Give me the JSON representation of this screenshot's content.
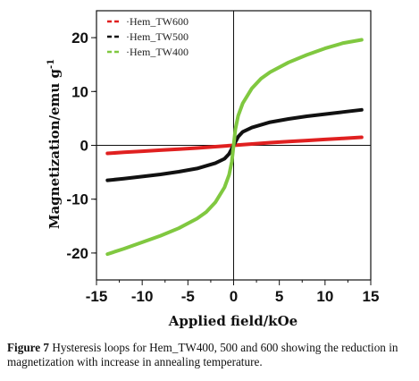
{
  "chart_data": {
    "type": "line",
    "title": "",
    "xlabel": "Applied field/kOe",
    "ylabel": "Magnetization/emu g",
    "ylabel_superscript": "-1",
    "xlim": [
      -15,
      15
    ],
    "ylim": [
      -25,
      25
    ],
    "xticks": [
      -15,
      -10,
      -5,
      0,
      5,
      10,
      15
    ],
    "yticks": [
      -20,
      -10,
      0,
      10,
      20
    ],
    "grid": false,
    "legend_position": "top-left",
    "series": [
      {
        "name": "Hem_TW600",
        "color": "#e02020",
        "x": [
          -13.8,
          -12,
          -10,
          -8,
          -6,
          -4,
          -2,
          -1,
          0,
          1,
          2,
          4,
          6,
          8,
          10,
          12,
          14
        ],
        "y": [
          -1.5,
          -1.3,
          -1.1,
          -0.9,
          -0.7,
          -0.5,
          -0.25,
          -0.12,
          0,
          0.12,
          0.25,
          0.5,
          0.7,
          0.9,
          1.1,
          1.3,
          1.5
        ]
      },
      {
        "name": "Hem_TW500",
        "color": "#111111",
        "x": [
          -13.8,
          -12,
          -10,
          -8,
          -6,
          -4,
          -2,
          -1,
          -0.5,
          0,
          0.5,
          1,
          2,
          4,
          6,
          8,
          10,
          12,
          14
        ],
        "y": [
          -6.5,
          -6.2,
          -5.8,
          -5.4,
          -4.9,
          -4.3,
          -3.3,
          -2.5,
          -1.6,
          0,
          1.6,
          2.5,
          3.3,
          4.3,
          4.9,
          5.4,
          5.8,
          6.2,
          6.6
        ]
      },
      {
        "name": "Hem_TW400",
        "color": "#80c840",
        "x": [
          -13.8,
          -12,
          -10,
          -8,
          -6,
          -4,
          -3,
          -2,
          -1,
          -0.5,
          -0.2,
          0,
          0.2,
          0.5,
          1,
          2,
          3,
          4,
          6,
          8,
          10,
          12,
          14
        ],
        "y": [
          -20.2,
          -19.2,
          -18.0,
          -16.8,
          -15.4,
          -13.6,
          -12.4,
          -10.6,
          -7.8,
          -5.5,
          -3.0,
          0,
          3.0,
          5.5,
          7.8,
          10.6,
          12.4,
          13.6,
          15.4,
          16.8,
          18.0,
          19.0,
          19.6
        ]
      }
    ]
  },
  "caption": {
    "label": "Figure 7",
    "text": "Hysteresis loops for Hem_TW400, 500 and 600 showing the reduction in magnetization with increase in annealing temperature."
  }
}
